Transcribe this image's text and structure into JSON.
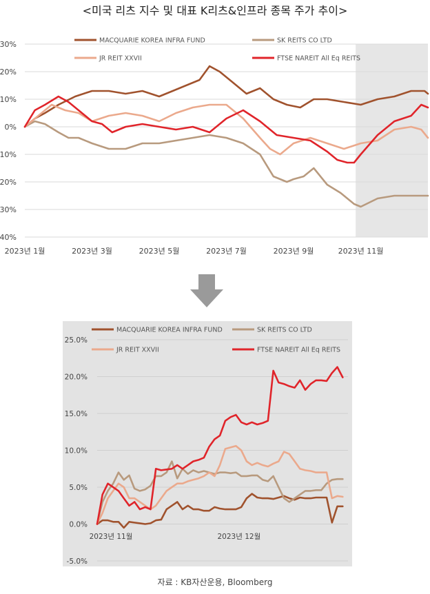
{
  "title": "<미국 리츠 지수 및 대표 K리츠&인프라 종목 주가 추이>",
  "source": "자료 : KB자산운용, Bloomberg",
  "colors": {
    "macquarie": "#a0522d",
    "skreits": "#b89a7e",
    "jrreit": "#eba98c",
    "ftse": "#e0242a",
    "highlight": "#e6e6e6",
    "panel": "#e3e3e3",
    "grid": "#d9d9d9",
    "arrow": "#9a9a9a"
  },
  "arrow_icon": "down-arrow-icon",
  "chart_data": [
    {
      "type": "line",
      "legend": [
        "MACQUARIE KOREA INFRA FUND",
        "SK REITS CO LTD",
        "JR REIT XXVII",
        "FTSE NAREIT All Eq REITS"
      ],
      "y_ticks": [
        "30%",
        "20%",
        "10%",
        "0%",
        "-10%",
        "-20%",
        "-30%",
        "-40%"
      ],
      "x_ticks": [
        "2023년 1월",
        "2023년 3월",
        "2023년 5월",
        "2023년 7월",
        "2023년 9월",
        "2023년 11월"
      ],
      "ylim": [
        -40,
        30
      ],
      "xlim": [
        0,
        12
      ],
      "x_unit": "months since start of 2023",
      "x_tick_values": [
        0,
        2,
        4,
        6,
        8,
        10
      ],
      "shaded_region": [
        9.85,
        12
      ],
      "series": [
        {
          "name": "MACQUARIE KOREA INFRA FUND",
          "x": [
            0,
            0.3,
            0.6,
            1.0,
            1.5,
            2.0,
            2.5,
            3.0,
            3.5,
            4.0,
            4.6,
            5.2,
            5.5,
            5.8,
            6.2,
            6.6,
            7.0,
            7.4,
            7.8,
            8.2,
            8.6,
            9.0,
            9.5,
            10.0,
            10.5,
            11.0,
            11.5,
            11.9,
            12.0
          ],
          "values": [
            0,
            3,
            5,
            8,
            11,
            13,
            13,
            12,
            13,
            11,
            14,
            17,
            22,
            20,
            16,
            12,
            14,
            10,
            8,
            7,
            10,
            10,
            9,
            8,
            10,
            11,
            13,
            13,
            12
          ]
        },
        {
          "name": "SK REITS CO LTD",
          "x": [
            0,
            0.3,
            0.6,
            1.0,
            1.3,
            1.6,
            2.0,
            2.5,
            3.0,
            3.5,
            4.0,
            4.5,
            5.0,
            5.5,
            6.0,
            6.5,
            7.0,
            7.4,
            7.8,
            8.0,
            8.3,
            8.6,
            9.0,
            9.4,
            9.8,
            10.0,
            10.5,
            11.0,
            11.5,
            12.0
          ],
          "values": [
            0,
            2,
            1,
            -2,
            -4,
            -4,
            -6,
            -8,
            -8,
            -6,
            -6,
            -5,
            -4,
            -3,
            -4,
            -6,
            -10,
            -18,
            -20,
            -19,
            -18,
            -15,
            -21,
            -24,
            -28,
            -29,
            -26,
            -25,
            -25,
            -25
          ]
        },
        {
          "name": "JR REIT XXVII",
          "x": [
            0,
            0.4,
            0.8,
            1.2,
            1.6,
            2.0,
            2.5,
            3.0,
            3.5,
            4.0,
            4.5,
            5.0,
            5.5,
            6.0,
            6.5,
            7.0,
            7.3,
            7.6,
            8.0,
            8.5,
            9.0,
            9.5,
            10.0,
            10.5,
            11.0,
            11.5,
            11.8,
            12.0
          ],
          "values": [
            0,
            4,
            8,
            6,
            5,
            2,
            4,
            5,
            4,
            2,
            5,
            7,
            8,
            8,
            3,
            -4,
            -8,
            -10,
            -6,
            -4,
            -6,
            -8,
            -6,
            -5,
            -1,
            0,
            -1,
            -4
          ]
        },
        {
          "name": "FTSE NAREIT All Eq REITS",
          "x": [
            0,
            0.3,
            0.6,
            1.0,
            1.3,
            1.6,
            2.0,
            2.3,
            2.6,
            3.0,
            3.5,
            4.0,
            4.5,
            5.0,
            5.5,
            6.0,
            6.5,
            7.0,
            7.5,
            8.0,
            8.5,
            9.0,
            9.3,
            9.6,
            9.8,
            10.0,
            10.5,
            11.0,
            11.5,
            11.8,
            12.0
          ],
          "values": [
            0,
            6,
            8,
            11,
            9,
            6,
            2,
            1,
            -2,
            0,
            1,
            0,
            -1,
            0,
            -2,
            3,
            6,
            2,
            -3,
            -4,
            -5,
            -9,
            -12,
            -13,
            -13,
            -10,
            -3,
            2,
            4,
            8,
            7
          ]
        }
      ]
    },
    {
      "type": "line",
      "legend": [
        "MACQUARIE KOREA INFRA FUND",
        "SK REITS CO LTD",
        "JR REIT XXVII",
        "FTSE NAREIT All Eq REITS"
      ],
      "y_ticks": [
        "25.0%",
        "20.0%",
        "15.0%",
        "10.0%",
        "5.0%",
        "0.0%",
        "-5.0%"
      ],
      "x_ticks": [
        "2023년 11월",
        "2023년 12월"
      ],
      "ylim": [
        -5,
        25
      ],
      "xlim": [
        0,
        47
      ],
      "x_unit": "trading days from November 1, 2023",
      "x_tick_values": [
        0,
        24
      ],
      "series": [
        {
          "name": "MACQUARIE KOREA INFRA FUND",
          "x": [
            0,
            1,
            2,
            3,
            4,
            5,
            6,
            7,
            8,
            9,
            10,
            11,
            12,
            13,
            14,
            15,
            16,
            17,
            18,
            19,
            20,
            21,
            22,
            23,
            24,
            25,
            26,
            27,
            28,
            29,
            30,
            31,
            32,
            33,
            34,
            35,
            36,
            37,
            38,
            39,
            40,
            41,
            42,
            43,
            44,
            45,
            46
          ],
          "values": [
            0,
            0.5,
            0.5,
            0.3,
            0.3,
            -0.5,
            0.3,
            0.2,
            0.1,
            0,
            0.1,
            0.5,
            0.6,
            2.0,
            2.5,
            3.0,
            2.0,
            2.5,
            2.0,
            2.0,
            1.8,
            1.8,
            2.3,
            2.1,
            2.0,
            2.0,
            2.0,
            2.3,
            3.5,
            4.1,
            3.6,
            3.5,
            3.5,
            3.4,
            3.6,
            3.8,
            3.5,
            3.3,
            3.6,
            3.5,
            3.5,
            3.6,
            3.6,
            3.6,
            0.2,
            2.4,
            2.4
          ]
        },
        {
          "name": "SK REITS CO LTD",
          "x": [
            0,
            1,
            2,
            3,
            4,
            5,
            6,
            7,
            8,
            9,
            10,
            11,
            12,
            13,
            14,
            15,
            16,
            17,
            18,
            19,
            20,
            21,
            22,
            23,
            24,
            25,
            26,
            27,
            28,
            29,
            30,
            31,
            32,
            33,
            34,
            35,
            36,
            37,
            38,
            39,
            40,
            41,
            42,
            43,
            44,
            45,
            46
          ],
          "values": [
            0,
            3.0,
            4.5,
            5.5,
            7.0,
            6.0,
            6.6,
            4.8,
            4.5,
            4.7,
            5.2,
            6.5,
            6.5,
            7.0,
            8.5,
            6.2,
            7.5,
            6.8,
            7.3,
            7.0,
            7.2,
            7.0,
            6.8,
            7.0,
            7.0,
            6.9,
            7.0,
            6.5,
            6.5,
            6.6,
            6.6,
            6.0,
            5.8,
            6.5,
            5.0,
            3.5,
            3.0,
            3.5,
            4.0,
            4.5,
            4.5,
            4.6,
            4.6,
            5.5,
            6.0,
            6.1,
            6.1
          ]
        },
        {
          "name": "JR REIT XXVII",
          "x": [
            0,
            1,
            2,
            3,
            4,
            5,
            6,
            7,
            8,
            9,
            10,
            11,
            12,
            13,
            14,
            15,
            16,
            17,
            18,
            19,
            20,
            21,
            22,
            23,
            24,
            25,
            26,
            27,
            28,
            29,
            30,
            31,
            32,
            33,
            34,
            35,
            36,
            37,
            38,
            39,
            40,
            41,
            42,
            43,
            44,
            45,
            46
          ],
          "values": [
            0,
            1.5,
            3.5,
            4.5,
            5.5,
            5.0,
            3.5,
            3.5,
            3.0,
            2.5,
            2.0,
            2.5,
            3.5,
            4.5,
            5.0,
            5.5,
            5.5,
            5.8,
            6.0,
            6.2,
            6.5,
            7.0,
            6.5,
            8.0,
            10.2,
            10.4,
            10.6,
            10.0,
            8.5,
            8.0,
            8.3,
            8.0,
            7.8,
            8.2,
            8.5,
            9.8,
            9.5,
            8.5,
            7.5,
            7.3,
            7.2,
            7.0,
            7.0,
            7.0,
            3.5,
            3.8,
            3.7
          ]
        },
        {
          "name": "FTSE NAREIT All Eq REITS",
          "x": [
            0,
            1,
            2,
            3,
            4,
            5,
            6,
            7,
            8,
            9,
            10,
            11,
            12,
            13,
            14,
            15,
            16,
            17,
            18,
            19,
            20,
            21,
            22,
            23,
            24,
            25,
            26,
            27,
            28,
            29,
            30,
            31,
            32,
            33,
            34,
            35,
            36,
            37,
            38,
            39,
            40,
            41,
            42,
            43,
            44,
            45,
            46
          ],
          "values": [
            0,
            4.0,
            5.5,
            5.0,
            4.5,
            3.5,
            2.5,
            3.0,
            2.0,
            2.3,
            2.0,
            7.5,
            7.3,
            7.4,
            7.5,
            8.0,
            7.5,
            8.0,
            8.5,
            8.7,
            9.0,
            10.5,
            11.5,
            12.0,
            14.0,
            14.5,
            14.8,
            13.8,
            13.5,
            13.8,
            13.5,
            13.7,
            14.0,
            20.8,
            19.2,
            19.0,
            18.7,
            18.5,
            19.5,
            18.2,
            19.0,
            19.5,
            19.5,
            19.4,
            20.5,
            21.3,
            19.9
          ]
        }
      ]
    }
  ]
}
